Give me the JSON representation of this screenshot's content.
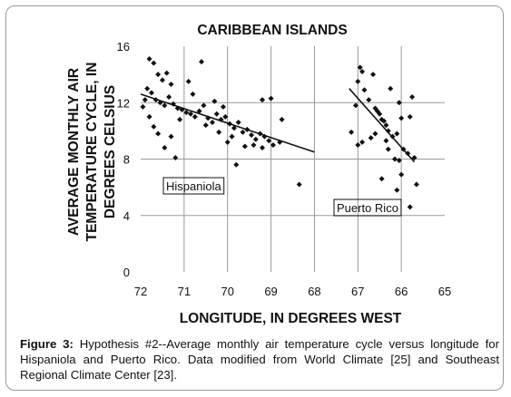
{
  "chart_data": {
    "type": "scatter",
    "title": "CARIBBEAN ISLANDS",
    "xlabel": "LONGITUDE, IN DEGREES WEST",
    "ylabel": [
      "AVERAGE MONTHLY AIR",
      "TEMPERATURE CYCLE, IN",
      "DEGREES CELSIUS"
    ],
    "xlim": [
      72,
      65
    ],
    "ylim": [
      0,
      16
    ],
    "x_reversed": true,
    "x_ticks": [
      "72",
      "71",
      "70",
      "69",
      "68",
      "67",
      "66",
      "65"
    ],
    "y_ticks": [
      "0",
      "4",
      "8",
      "12",
      "16"
    ],
    "grid": true,
    "annotations": [
      "Hispaniola",
      "Puerto Rico"
    ],
    "series": [
      {
        "name": "Hispaniola",
        "trendline": [
          [
            72.0,
            12.6
          ],
          [
            68.0,
            8.5
          ]
        ],
        "points": [
          [
            71.95,
            11.7
          ],
          [
            71.8,
            15.1
          ],
          [
            71.7,
            14.8
          ],
          [
            71.6,
            14.0
          ],
          [
            71.5,
            13.6
          ],
          [
            71.3,
            13.3
          ],
          [
            71.4,
            14.1
          ],
          [
            71.85,
            13.0
          ],
          [
            71.75,
            12.7
          ],
          [
            71.65,
            12.2
          ],
          [
            71.55,
            12.0
          ],
          [
            71.45,
            11.8
          ],
          [
            71.35,
            12.4
          ],
          [
            71.25,
            11.9
          ],
          [
            71.15,
            11.6
          ],
          [
            71.05,
            11.5
          ],
          [
            70.95,
            11.3
          ],
          [
            70.85,
            11.2
          ],
          [
            70.75,
            11.0
          ],
          [
            70.65,
            11.4
          ],
          [
            70.55,
            11.8
          ],
          [
            70.45,
            10.9
          ],
          [
            70.35,
            10.6
          ],
          [
            70.25,
            11.2
          ],
          [
            70.15,
            10.8
          ],
          [
            70.05,
            11.0
          ],
          [
            69.95,
            10.5
          ],
          [
            69.85,
            10.2
          ],
          [
            69.75,
            10.6
          ],
          [
            69.65,
            9.9
          ],
          [
            69.55,
            10.1
          ],
          [
            69.45,
            9.7
          ],
          [
            69.35,
            9.4
          ],
          [
            69.25,
            9.8
          ],
          [
            69.15,
            9.6
          ],
          [
            69.05,
            9.3
          ],
          [
            68.95,
            9.0
          ],
          [
            71.7,
            10.3
          ],
          [
            71.6,
            9.8
          ],
          [
            71.3,
            9.6
          ],
          [
            71.2,
            8.1
          ],
          [
            71.45,
            8.8
          ],
          [
            70.9,
            13.5
          ],
          [
            70.6,
            14.9
          ],
          [
            70.8,
            12.6
          ],
          [
            70.3,
            12.1
          ],
          [
            70.1,
            11.7
          ],
          [
            69.9,
            9.6
          ],
          [
            69.8,
            7.6
          ],
          [
            69.6,
            8.9
          ],
          [
            69.4,
            9.0
          ],
          [
            69.2,
            8.8
          ],
          [
            69.0,
            12.3
          ],
          [
            69.2,
            12.2
          ],
          [
            68.75,
            10.8
          ],
          [
            68.8,
            9.2
          ],
          [
            68.35,
            6.2
          ],
          [
            70.0,
            9.2
          ],
          [
            70.2,
            9.9
          ],
          [
            70.5,
            10.4
          ],
          [
            71.1,
            10.8
          ],
          [
            71.8,
            11.0
          ],
          [
            71.9,
            12.2
          ]
        ]
      },
      {
        "name": "Puerto Rico",
        "trendline": [
          [
            67.2,
            13.0
          ],
          [
            65.7,
            7.8
          ]
        ],
        "points": [
          [
            67.15,
            9.9
          ],
          [
            67.05,
            11.8
          ],
          [
            67.0,
            13.5
          ],
          [
            66.95,
            14.5
          ],
          [
            66.9,
            14.2
          ],
          [
            66.85,
            12.9
          ],
          [
            66.75,
            12.2
          ],
          [
            66.65,
            14.0
          ],
          [
            66.6,
            11.6
          ],
          [
            66.5,
            11.2
          ],
          [
            66.45,
            10.8
          ],
          [
            66.35,
            10.4
          ],
          [
            66.3,
            10.0
          ],
          [
            66.2,
            9.6
          ],
          [
            66.1,
            9.8
          ],
          [
            66.05,
            12.0
          ],
          [
            66.0,
            10.9
          ],
          [
            65.95,
            8.7
          ],
          [
            65.85,
            8.4
          ],
          [
            65.8,
            11.0
          ],
          [
            65.75,
            12.4
          ],
          [
            65.7,
            8.1
          ],
          [
            65.65,
            6.2
          ],
          [
            65.8,
            4.6
          ],
          [
            66.0,
            6.9
          ],
          [
            66.1,
            5.8
          ],
          [
            66.25,
            13.0
          ],
          [
            66.4,
            10.7
          ],
          [
            66.55,
            11.4
          ],
          [
            66.7,
            9.5
          ],
          [
            66.9,
            9.2
          ],
          [
            67.0,
            9.0
          ],
          [
            66.6,
            9.8
          ],
          [
            66.45,
            6.6
          ],
          [
            66.3,
            8.7
          ],
          [
            66.15,
            8.0
          ],
          [
            66.35,
            9.3
          ],
          [
            66.05,
            7.9
          ]
        ]
      }
    ]
  },
  "caption": {
    "label": "Figure 3:",
    "text": " Hypothesis #2--Average monthly air temperature cycle versus longitude for Hispaniola and Puerto Rico. Data modified from World Climate [25] and Southeast Regional Climate Center [23]."
  }
}
